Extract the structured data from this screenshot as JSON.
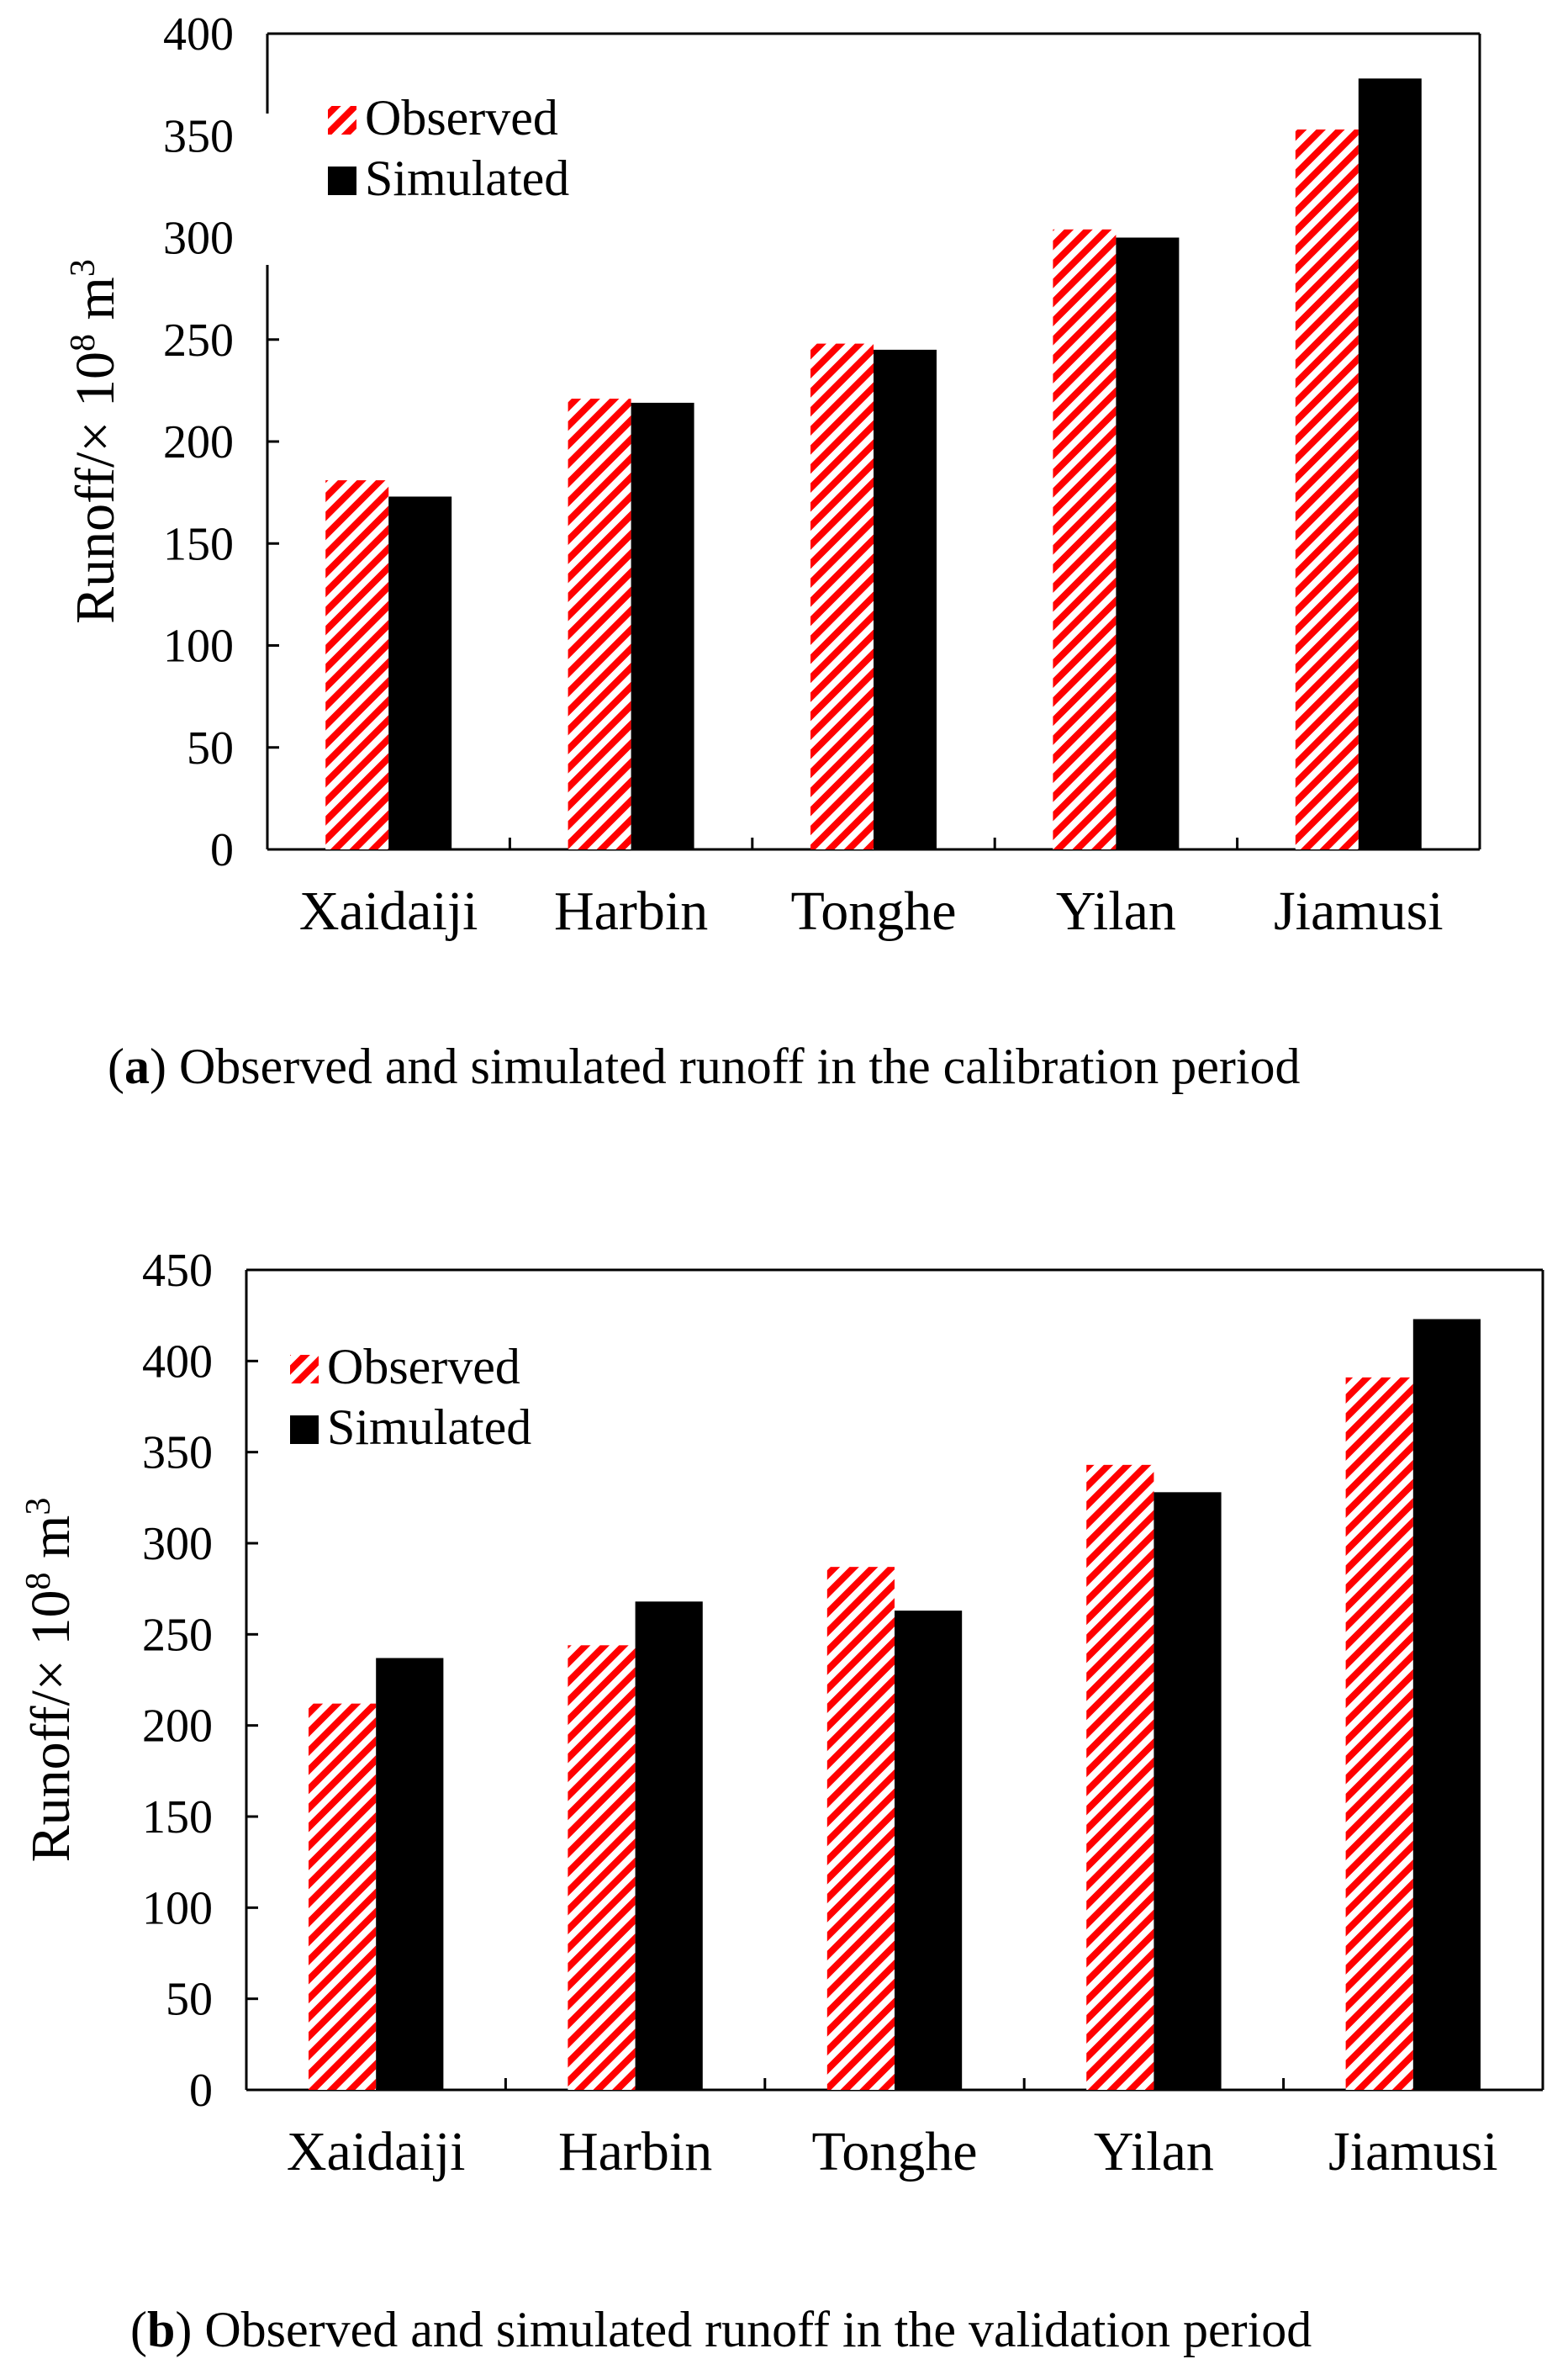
{
  "colors": {
    "observed_stripe": "#ff0000",
    "observed_bg": "#ffffff",
    "simulated": "#000000",
    "axis": "#000000"
  },
  "chart_data": [
    {
      "type": "bar",
      "caption_prefix": "(",
      "caption_letter": "a",
      "caption_text": ") Observed and simulated runoff in the calibration period",
      "ylabel_main": "Runoff/× 10",
      "ylabel_sup1": "8",
      "ylabel_unit": " m",
      "ylabel_sup2": "3",
      "xlabel": "",
      "categories": [
        "Xaidaiji",
        "Harbin",
        "Tonghe",
        "Yilan",
        "Jiamusi"
      ],
      "ylim": [
        0,
        400
      ],
      "yticks": [
        0,
        50,
        100,
        150,
        200,
        250,
        300,
        350,
        400
      ],
      "legend_position": "top-left",
      "grid": false,
      "series": [
        {
          "name": "Observed",
          "pattern": "red-diagonal-stripes",
          "values": [
            181,
            221,
            248,
            304,
            353
          ]
        },
        {
          "name": "Simulated",
          "pattern": "solid-black",
          "values": [
            173,
            219,
            245,
            300,
            378
          ]
        }
      ]
    },
    {
      "type": "bar",
      "caption_prefix": "(",
      "caption_letter": "b",
      "caption_text": ") Observed and simulated runoff in the validation period",
      "ylabel_main": "Runoff/× 10",
      "ylabel_sup1": "8",
      "ylabel_unit": " m",
      "ylabel_sup2": "3",
      "xlabel": "",
      "categories": [
        "Xaidaiji",
        "Harbin",
        "Tonghe",
        "Yilan",
        "Jiamusi"
      ],
      "ylim": [
        0,
        450
      ],
      "yticks": [
        0,
        50,
        100,
        150,
        200,
        250,
        300,
        350,
        400,
        450
      ],
      "legend_position": "top-left",
      "grid": false,
      "series": [
        {
          "name": "Observed",
          "pattern": "red-diagonal-stripes",
          "values": [
            212,
            244,
            287,
            343,
            391
          ]
        },
        {
          "name": "Simulated",
          "pattern": "solid-black",
          "values": [
            237,
            268,
            263,
            328,
            423
          ]
        }
      ]
    }
  ]
}
